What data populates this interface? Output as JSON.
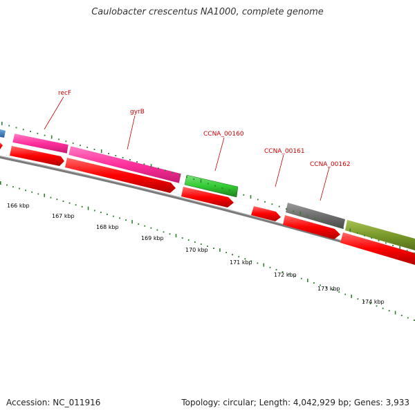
{
  "header": {
    "title": "Caulobacter crescentus NA1000, complete genome"
  },
  "footer": {
    "accession": "Accession: NC_011916",
    "summary": "Topology: circular; Length: 4,042,929 bp; Genes: 3,933"
  },
  "gene_labels": [
    "recF",
    "gyrB",
    "CCNA_00160",
    "CCNA_00161",
    "CCNA_00162"
  ],
  "scale_ticks": [
    "166 kbp",
    "167 kbp",
    "168 kbp",
    "169 kbp",
    "170 kbp",
    "171 kbp",
    "172 kbp",
    "173 kbp",
    "174 kbp"
  ],
  "colors": {
    "cds_arrow": "#ff0000",
    "gene_pink": "#ff2f9c",
    "gene_green": "#33cc33",
    "gene_gray": "#6e6e6e",
    "gene_olive": "#7a9a2a",
    "gene_blue": "#3a7fc0",
    "backbone": "#808080",
    "tick": "#2f7f2f",
    "label": "#cc0000"
  }
}
